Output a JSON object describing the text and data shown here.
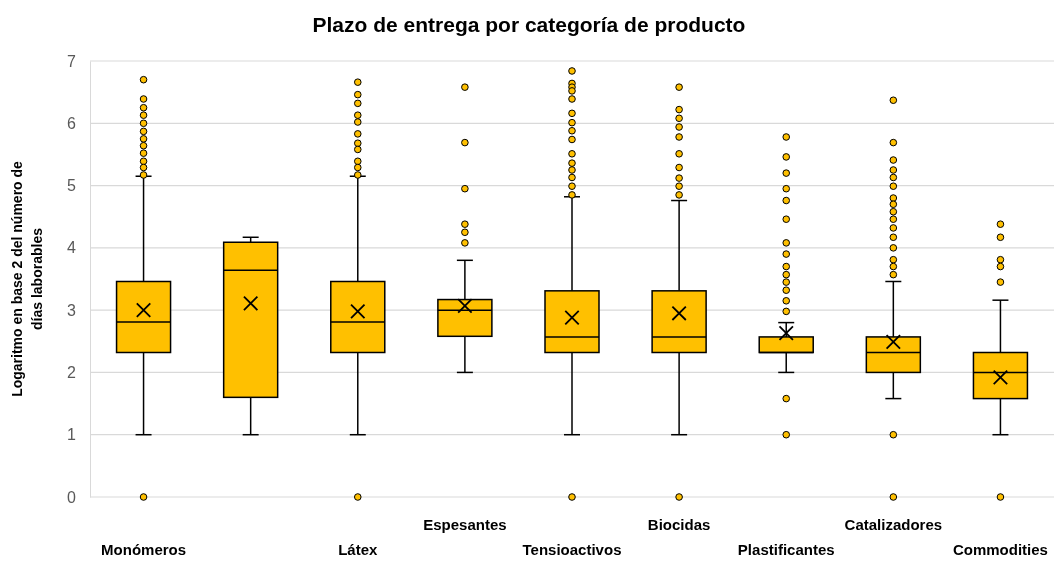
{
  "chart_data": {
    "type": "box",
    "title": "Plazo de entrega por categoría de producto",
    "ylabel": "Logaritmo en base 2 del número de días laborables",
    "categories": [
      "Monómeros",
      null,
      "Látex",
      "Espesantes",
      "Tensioactivos",
      "Biocidas",
      "Plastificantes",
      "Catalizadores",
      "Commodities"
    ],
    "color": "#ffc000",
    "ylim": [
      0,
      7
    ],
    "yticks": [
      0,
      1,
      2,
      3,
      4,
      5,
      6,
      7
    ],
    "grid": "y",
    "marker": "cross",
    "boxes": [
      {
        "low": 1,
        "q1": 2.32,
        "median": 2.81,
        "q3": 3.46,
        "high": 5.15,
        "mean": 3.0,
        "outliers": [
          6.7,
          6.39,
          6.25,
          6.13,
          6.0,
          5.87,
          5.75,
          5.64,
          5.52,
          5.39,
          5.29,
          5.17,
          0
        ]
      },
      {
        "low": 1,
        "q1": 1.6,
        "median": 3.64,
        "q3": 4.09,
        "high": 4.17,
        "mean": 3.11
      },
      {
        "low": 1,
        "q1": 2.32,
        "median": 2.81,
        "q3": 3.46,
        "high": 5.15,
        "mean": 2.98,
        "outliers": [
          6.66,
          6.46,
          6.32,
          6.13,
          6.02,
          5.83,
          5.68,
          5.58,
          5.39,
          5.29,
          5.17,
          0
        ]
      },
      {
        "low": 2,
        "q1": 2.58,
        "median": 3.0,
        "q3": 3.17,
        "high": 3.8,
        "mean": 3.07,
        "outliers": [
          6.58,
          5.69,
          4.95,
          4.38,
          4.25,
          4.08
        ]
      },
      {
        "low": 1,
        "q1": 2.32,
        "median": 2.57,
        "q3": 3.31,
        "high": 4.82,
        "mean": 2.88,
        "outliers": [
          6.84,
          6.64,
          6.58,
          6.52,
          6.39,
          6.16,
          6.01,
          5.88,
          5.74,
          5.51,
          5.36,
          5.25,
          5.13,
          4.99,
          4.85,
          0
        ]
      },
      {
        "low": 1,
        "q1": 2.32,
        "median": 2.57,
        "q3": 3.31,
        "high": 4.76,
        "mean": 2.95,
        "outliers": [
          6.58,
          6.22,
          6.08,
          5.94,
          5.78,
          5.51,
          5.29,
          5.12,
          4.99,
          4.85,
          0
        ]
      },
      {
        "low": 2,
        "q1": 2.32,
        "median": 2.32,
        "q3": 2.57,
        "high": 2.8,
        "mean": 2.63,
        "outliers": [
          5.78,
          5.46,
          5.2,
          4.95,
          4.76,
          4.46,
          4.08,
          3.9,
          3.7,
          3.57,
          3.45,
          3.32,
          3.15,
          2.98,
          1.58,
          1
        ]
      },
      {
        "low": 1.58,
        "q1": 2.0,
        "median": 2.32,
        "q3": 2.57,
        "high": 3.46,
        "mean": 2.49,
        "outliers": [
          6.37,
          5.69,
          5.41,
          5.25,
          5.13,
          4.99,
          4.8,
          4.7,
          4.58,
          4.46,
          4.32,
          4.17,
          4.0,
          3.81,
          3.7,
          3.57,
          1,
          0
        ]
      },
      {
        "low": 1,
        "q1": 1.58,
        "median": 2.0,
        "q3": 2.32,
        "high": 3.16,
        "mean": 1.92,
        "outliers": [
          4.38,
          4.17,
          3.81,
          3.7,
          3.45,
          0
        ]
      }
    ]
  }
}
